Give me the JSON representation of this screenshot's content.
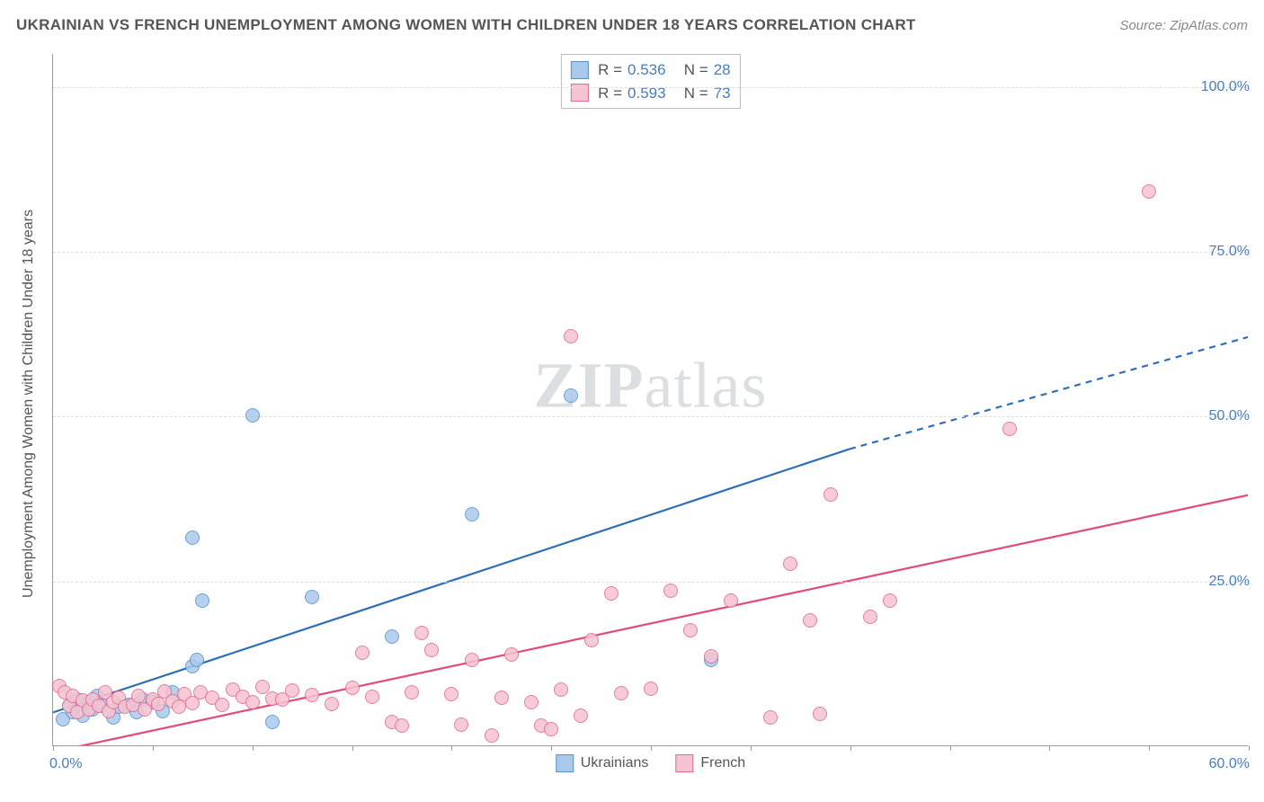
{
  "title": "UKRAINIAN VS FRENCH UNEMPLOYMENT AMONG WOMEN WITH CHILDREN UNDER 18 YEARS CORRELATION CHART",
  "source": "Source: ZipAtlas.com",
  "y_axis_title": "Unemployment Among Women with Children Under 18 years",
  "watermark": "ZIPatlas",
  "chart": {
    "type": "scatter",
    "background_color": "#ffffff",
    "grid_color": "#dddddd",
    "axis_color": "#999999",
    "label_color": "#4a7db8",
    "label_fontsize": 16,
    "xlim": [
      0,
      60
    ],
    "ylim": [
      0,
      105
    ],
    "x_tick_positions": [
      0,
      5,
      10,
      15,
      20,
      25,
      30,
      35,
      40,
      45,
      50,
      55,
      60
    ],
    "y_grid": [
      25,
      50,
      75,
      100
    ],
    "y_tick_labels": [
      "25.0%",
      "50.0%",
      "75.0%",
      "100.0%"
    ],
    "x_label_start": "0.0%",
    "x_label_end": "60.0%",
    "marker_radius": 8,
    "series": [
      {
        "name": "Ukrainians",
        "fill_color": "#a9c9ec",
        "stroke_color": "#5a8fca",
        "R": "0.536",
        "N": "28",
        "trend": {
          "x1": 0,
          "y1": 5,
          "x2": 40,
          "y2": 45,
          "x2_dash": 60,
          "y2_dash": 62,
          "line_color": "#2e6fb5",
          "line_width": 2.2
        },
        "points": [
          [
            0.5,
            4
          ],
          [
            0.8,
            6
          ],
          [
            1,
            5
          ],
          [
            1.2,
            7
          ],
          [
            1.5,
            4.5
          ],
          [
            1.8,
            6.5
          ],
          [
            2,
            5.5
          ],
          [
            2.2,
            7.5
          ],
          [
            2.5,
            6
          ],
          [
            3,
            4.2
          ],
          [
            3.3,
            5.8
          ],
          [
            3.8,
            6.2
          ],
          [
            4.2,
            5
          ],
          [
            4.5,
            7
          ],
          [
            5,
            6.5
          ],
          [
            5.5,
            5.2
          ],
          [
            6,
            8
          ],
          [
            7,
            12
          ],
          [
            7.2,
            13
          ],
          [
            7.5,
            22
          ],
          [
            7,
            31.5
          ],
          [
            10,
            50
          ],
          [
            11,
            3.5
          ],
          [
            13,
            22.5
          ],
          [
            17,
            16.5
          ],
          [
            21,
            35
          ],
          [
            26,
            53
          ],
          [
            33,
            13
          ]
        ]
      },
      {
        "name": "French",
        "fill_color": "#f5c3d1",
        "stroke_color": "#e06a8e",
        "R": "0.593",
        "N": "73",
        "trend": {
          "x1": 0,
          "y1": -1,
          "x2": 60,
          "y2": 38,
          "line_color": "#e24a78",
          "line_width": 2.2
        },
        "points": [
          [
            0.3,
            9
          ],
          [
            0.6,
            8
          ],
          [
            0.8,
            6
          ],
          [
            1,
            7.5
          ],
          [
            1.2,
            5
          ],
          [
            1.5,
            6.8
          ],
          [
            1.8,
            5.5
          ],
          [
            2,
            7
          ],
          [
            2.3,
            6
          ],
          [
            2.6,
            8
          ],
          [
            2.8,
            5.2
          ],
          [
            3,
            6.5
          ],
          [
            3.3,
            7.2
          ],
          [
            3.6,
            5.8
          ],
          [
            4,
            6.2
          ],
          [
            4.3,
            7.5
          ],
          [
            4.6,
            5.5
          ],
          [
            5,
            7
          ],
          [
            5.3,
            6.3
          ],
          [
            5.6,
            8.2
          ],
          [
            6,
            6.7
          ],
          [
            6.3,
            5.9
          ],
          [
            6.6,
            7.8
          ],
          [
            7,
            6.4
          ],
          [
            7.4,
            8
          ],
          [
            8,
            7.2
          ],
          [
            8.5,
            6.1
          ],
          [
            9,
            8.5
          ],
          [
            9.5,
            7.3
          ],
          [
            10,
            6.6
          ],
          [
            10.5,
            8.8
          ],
          [
            11,
            7.1
          ],
          [
            11.5,
            6.9
          ],
          [
            12,
            8.3
          ],
          [
            13,
            7.6
          ],
          [
            14,
            6.3
          ],
          [
            15,
            8.7
          ],
          [
            15.5,
            14
          ],
          [
            16,
            7.4
          ],
          [
            17,
            3.5
          ],
          [
            18,
            8.1
          ],
          [
            18.5,
            17
          ],
          [
            19,
            14.5
          ],
          [
            20,
            7.8
          ],
          [
            21,
            13
          ],
          [
            22,
            1.5
          ],
          [
            22.5,
            7.2
          ],
          [
            23,
            13.8
          ],
          [
            24,
            6.5
          ],
          [
            24.5,
            3
          ],
          [
            25,
            2.5
          ],
          [
            25.5,
            8.4
          ],
          [
            26,
            62
          ],
          [
            27,
            16
          ],
          [
            28,
            23
          ],
          [
            28.5,
            7.9
          ],
          [
            30,
            8.6
          ],
          [
            31,
            23.5
          ],
          [
            32,
            17.5
          ],
          [
            33,
            13.5
          ],
          [
            34,
            22
          ],
          [
            36,
            4.2
          ],
          [
            37,
            27.5
          ],
          [
            38,
            19
          ],
          [
            38.5,
            4.8
          ],
          [
            39,
            38
          ],
          [
            41,
            19.5
          ],
          [
            42,
            22
          ],
          [
            48,
            48
          ],
          [
            55,
            84
          ],
          [
            17.5,
            3
          ],
          [
            20.5,
            3.2
          ],
          [
            26.5,
            4.5
          ]
        ]
      }
    ]
  },
  "legend_top": {
    "R_label": "R =",
    "N_label": "N =",
    "value_color": "#4a7db8",
    "text_color": "#555555"
  },
  "legend_bottom": [
    {
      "label": "Ukrainians",
      "fill": "#a9c9ec",
      "stroke": "#5a8fca"
    },
    {
      "label": "French",
      "fill": "#f5c3d1",
      "stroke": "#e06a8e"
    }
  ]
}
